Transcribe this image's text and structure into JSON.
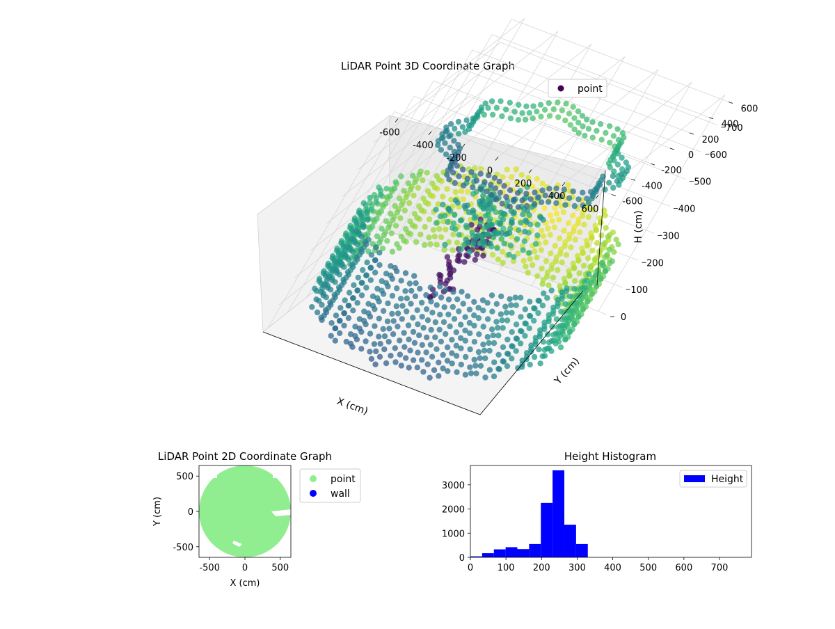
{
  "chart_data": [
    {
      "type": "scatter3d",
      "title": "LiDAR Point 3D Coordinate Graph",
      "xlabel": "X (cm)",
      "ylabel": "Y (cm)",
      "zlabel": "H (cm)",
      "xlim": [
        -650,
        650
      ],
      "ylim": [
        -650,
        650
      ],
      "zlim": [
        800,
        0
      ],
      "xticks": [
        -600,
        -400,
        -200,
        0,
        200,
        400,
        600
      ],
      "yticks": [
        -600,
        -400,
        -200,
        0,
        200,
        400,
        600
      ],
      "zticks": [
        0,
        100,
        200,
        300,
        400,
        500,
        600,
        700
      ],
      "legend": {
        "placement": "top-right",
        "entries": [
          "point"
        ]
      },
      "series": [
        {
          "name": "point",
          "color": "#440154",
          "colormap": "viridis",
          "shape": "ring-room",
          "wall_radius_cm": 650,
          "wall_height_range_cm": [
            50,
            330
          ],
          "floor_ring_radius_cm": 450,
          "floor_height_cm": 650,
          "central_object_height_range_cm": [
            100,
            350
          ]
        }
      ],
      "grid": true
    },
    {
      "type": "scatter",
      "title": "LiDAR Point 2D Coordinate Graph",
      "xlabel": "X (cm)",
      "ylabel": "Y (cm)",
      "xlim": [
        -650,
        650
      ],
      "ylim": [
        -650,
        650
      ],
      "xticks": [
        -500,
        0,
        500
      ],
      "yticks": [
        -500,
        0,
        500
      ],
      "legend": {
        "placement": "outside-right",
        "entries": [
          "point",
          "wall"
        ]
      },
      "series": [
        {
          "name": "point",
          "color": "#90ee90",
          "radius_cm": 650
        },
        {
          "name": "wall",
          "color": "#0000ff"
        }
      ]
    },
    {
      "type": "bar",
      "title": "Height Histogram",
      "xlim": [
        0,
        790
      ],
      "ylim": [
        0,
        3800
      ],
      "xticks": [
        0,
        100,
        200,
        300,
        400,
        500,
        600,
        700
      ],
      "yticks": [
        0,
        1000,
        2000,
        3000
      ],
      "legend": {
        "placement": "top-right",
        "entries": [
          "Height"
        ]
      },
      "bin_width": 33,
      "bin_edges": [
        0,
        33,
        66,
        99,
        132,
        165,
        198,
        231,
        264,
        297,
        330,
        363,
        396,
        429,
        462,
        495,
        528,
        561,
        594,
        627,
        660,
        693,
        726,
        759,
        792
      ],
      "series": [
        {
          "name": "Height",
          "color": "#0000ff",
          "values": [
            40,
            170,
            330,
            420,
            340,
            550,
            2250,
            3600,
            1350,
            550,
            0,
            0,
            0,
            0,
            0,
            0,
            0,
            0,
            0,
            0,
            0,
            0,
            0,
            0
          ]
        }
      ]
    }
  ]
}
